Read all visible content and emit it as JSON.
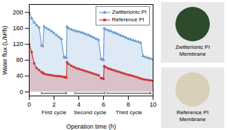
{
  "chart_data": {
    "type": "area",
    "xlabel": "Operation time (h)",
    "ylabel": "Water flux (L/M²h)",
    "xlim": [
      0,
      10
    ],
    "ylim": [
      -10,
      220
    ],
    "xticks": [
      0,
      2,
      4,
      6,
      8,
      10
    ],
    "yticks": [
      0,
      40,
      80,
      120,
      160,
      200
    ],
    "grid": false,
    "legend": "upper right",
    "x": [
      0.0,
      0.2,
      0.4,
      0.6,
      0.8,
      1.0,
      1.1,
      1.2,
      1.4,
      1.6,
      1.8,
      2.0,
      2.2,
      2.4,
      2.6,
      2.8,
      2.9,
      3.0,
      3.05,
      3.2,
      3.4,
      3.6,
      3.8,
      4.0,
      4.2,
      4.4,
      4.6,
      4.8,
      5.0,
      5.2,
      5.4,
      5.6,
      5.8,
      5.9,
      6.0,
      6.05,
      6.2,
      6.4,
      6.6,
      6.8,
      7.0,
      7.2,
      7.4,
      7.6,
      7.8,
      8.0,
      8.2,
      8.4,
      8.6,
      8.8,
      9.0,
      9.2,
      9.4,
      9.6,
      9.8,
      10.0
    ],
    "series": [
      {
        "name": "Zwitterionic PI",
        "color": "#6699cc",
        "marker": "triangle",
        "values": [
          200,
          185,
          175,
          168,
          162,
          117,
          115,
          165,
          160,
          157,
          153,
          148,
          143,
          138,
          133,
          88,
          87,
          86,
          164,
          160,
          157,
          155,
          153,
          152,
          150,
          148,
          145,
          143,
          140,
          137,
          134,
          131,
          83,
          82,
          80,
          160,
          157,
          155,
          153,
          150,
          148,
          145,
          142,
          140,
          137,
          134,
          132,
          130,
          128,
          126,
          124,
          90,
          88,
          86,
          84,
          82
        ]
      },
      {
        "name": "Reference PI",
        "color": "#cc3333",
        "marker": "square",
        "values": [
          120,
          100,
          72,
          60,
          55,
          50,
          48,
          46,
          44,
          43,
          42,
          41,
          40,
          40,
          39,
          38,
          37,
          36,
          75,
          70,
          66,
          63,
          60,
          58,
          56,
          54,
          52,
          50,
          48,
          46,
          44,
          42,
          35,
          34,
          33,
          65,
          62,
          59,
          57,
          55,
          53,
          51,
          49,
          47,
          45,
          43,
          42,
          40,
          38,
          36,
          34,
          32,
          31,
          30,
          29,
          28
        ]
      }
    ],
    "annotations": [
      {
        "text": "First cycle",
        "x": [
          1,
          3
        ]
      },
      {
        "text": "Second cycle",
        "x": [
          3.7,
          6.1
        ]
      },
      {
        "text": "Third cycle",
        "x": [
          6.3,
          9.8
        ]
      },
      {
        "text": "Zwitterionic PI\nMembrane",
        "color": "#2d4a2d"
      },
      {
        "text": "Reference PI\nMembrane",
        "color": "#d8d0b8"
      }
    ]
  }
}
